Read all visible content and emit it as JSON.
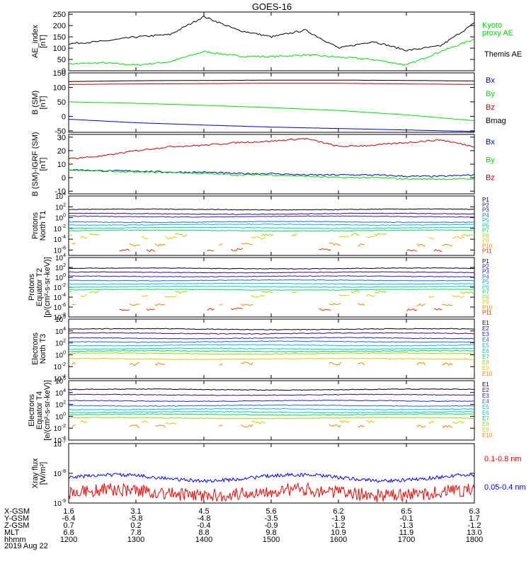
{
  "title": "GOES-16",
  "date_label": "2019 Aug 22",
  "colors": {
    "black": "#000000",
    "green": "#00e000",
    "blue": "#0000cc",
    "red": "#cc0000",
    "bright_red": "#ff0000",
    "bright_blue": "#0000ff",
    "channels": [
      "#000000",
      "#440088",
      "#2222cc",
      "#2266ff",
      "#00bbee",
      "#00ccbb",
      "#00dd55",
      "#99dd00",
      "#ddcc00",
      "#ee8800",
      "#dd3300",
      "#aa0000"
    ]
  },
  "orbit": {
    "rows": [
      {
        "label": "X-GSM",
        "values": [
          "1.6",
          "3.1",
          "4.5",
          "5.6",
          "6.2",
          "6.5",
          "6.3"
        ]
      },
      {
        "label": "Y-GSM",
        "values": [
          "-6.4",
          "-5.8",
          "-4.8",
          "-3.5",
          "-1.9",
          "-0.1",
          "1.7"
        ]
      },
      {
        "label": "Z-GSM",
        "values": [
          "0.7",
          "0.2",
          "-0.4",
          "-0.9",
          "-1.2",
          "-1.3",
          "-1.2"
        ]
      },
      {
        "label": "MLT",
        "values": [
          "6.8",
          "7.8",
          "8.8",
          "9.8",
          "10.9",
          "11.9",
          "13.0"
        ]
      },
      {
        "label": "hhmm",
        "values": [
          "1200",
          "1300",
          "1400",
          "1500",
          "1600",
          "1700",
          "1800"
        ]
      }
    ]
  },
  "chart_data": [
    {
      "type": "line",
      "ylabel": [
        "AE_index",
        "[nT]"
      ],
      "ylim": [
        0,
        260
      ],
      "yticks": [
        "0",
        "50",
        "100",
        "150",
        "200",
        "250"
      ],
      "x": [
        "1200",
        "1230",
        "1300",
        "1330",
        "1400",
        "1430",
        "1500",
        "1530",
        "1600",
        "1630",
        "1700",
        "1730",
        "1800"
      ],
      "series": [
        {
          "name": "Kyoto proxy AE",
          "color": "green",
          "values": [
            30,
            35,
            25,
            40,
            85,
            65,
            62,
            70,
            60,
            50,
            25,
            85,
            140
          ]
        },
        {
          "name": "Themis AE",
          "color": "black",
          "values": [
            120,
            130,
            150,
            160,
            240,
            180,
            150,
            180,
            100,
            130,
            90,
            110,
            210
          ]
        }
      ]
    },
    {
      "type": "line",
      "ylabel": [
        "B (SM)",
        "[nT]"
      ],
      "ylim": [
        -55,
        150
      ],
      "yticks": [
        "-50",
        "0",
        "50",
        "100",
        "150"
      ],
      "x": [
        "1200",
        "1300",
        "1400",
        "1500",
        "1600",
        "1700",
        "1800"
      ],
      "series": [
        {
          "name": "Bx",
          "color": "blue",
          "values": [
            -10,
            -22,
            -30,
            -37,
            -42,
            -47,
            -52
          ]
        },
        {
          "name": "By",
          "color": "green",
          "values": [
            50,
            45,
            38,
            30,
            20,
            5,
            -15
          ]
        },
        {
          "name": "Bz",
          "color": "red",
          "values": [
            110,
            112,
            113,
            114,
            114,
            112,
            110
          ]
        },
        {
          "name": "Bmag",
          "color": "black",
          "values": [
            120,
            123,
            124,
            125,
            125,
            124,
            122
          ]
        }
      ]
    },
    {
      "type": "line",
      "ylabel": [
        "B (SM)-IGRF (SM)",
        "[nT]"
      ],
      "ylim": [
        -12,
        32
      ],
      "yticks": [
        "-10",
        "0",
        "10",
        "20",
        "30"
      ],
      "x": [
        "1200",
        "1230",
        "1300",
        "1330",
        "1400",
        "1430",
        "1500",
        "1530",
        "1600",
        "1630",
        "1700",
        "1730",
        "1800"
      ],
      "series": [
        {
          "name": "Bx",
          "color": "blue",
          "values": [
            6,
            5,
            5,
            4,
            4,
            3,
            3,
            2,
            2,
            2,
            1,
            1,
            2
          ]
        },
        {
          "name": "By",
          "color": "green",
          "values": [
            6,
            5,
            4,
            4,
            3,
            2,
            2,
            1,
            0,
            0,
            -1,
            -1,
            -1
          ]
        },
        {
          "name": "Bz",
          "color": "red",
          "values": [
            14,
            16,
            20,
            23,
            24,
            26,
            27,
            29,
            23,
            24,
            26,
            28,
            23
          ]
        }
      ]
    },
    {
      "type": "line",
      "log": true,
      "ylabel": [
        "Protons",
        "North T1"
      ],
      "ylim_exp": [
        -7,
        4
      ],
      "ytick_exps": [
        4,
        2,
        0,
        -2,
        -4,
        -6
      ],
      "channels": [
        "P1",
        "P2",
        "P3",
        "P4",
        "P5",
        "P6",
        "P7",
        "P8",
        "P9",
        "P10",
        "P11"
      ],
      "levels_exp": [
        1.5,
        0.7,
        0.2,
        -0.8,
        -1.3,
        -1.9,
        -2.4,
        -3.2,
        -3.7,
        -5.0,
        -6.0
      ],
      "gappy_from": 7
    },
    {
      "type": "line",
      "log": true,
      "ylabel": [
        "Protons",
        "Equator T2",
        "[p/(cm²-s-sr-keV)]"
      ],
      "ylim_exp": [
        -8,
        4
      ],
      "ytick_exps": [
        4,
        2,
        0,
        -2,
        -4,
        -6,
        -8
      ],
      "channels": [
        "P1",
        "P2",
        "P3",
        "P4",
        "P5",
        "P6",
        "P7",
        "P8",
        "P9",
        "P10",
        "P11"
      ],
      "levels_exp": [
        1.8,
        1.0,
        0.2,
        -0.6,
        -1.3,
        -1.9,
        -2.5,
        -3.0,
        -3.8,
        -5.5,
        -6.5
      ],
      "gappy_from": 7
    },
    {
      "type": "line",
      "log": true,
      "ylabel": [
        "Electrons",
        "North T3"
      ],
      "ylim_exp": [
        -4,
        6
      ],
      "ytick_exps": [
        6,
        4,
        2,
        0,
        -2,
        -4
      ],
      "channels": [
        "E1",
        "E2",
        "E3",
        "E4",
        "E5",
        "E6",
        "E7",
        "E8",
        "E9",
        "E10"
      ],
      "levels_exp": [
        4.3,
        3.6,
        2.8,
        2.2,
        1.6,
        1.0,
        0.6,
        0.2,
        -0.7,
        -1.5
      ],
      "gappy_from": 9
    },
    {
      "type": "line",
      "log": true,
      "ylabel": [
        "Electrons",
        "Equator T4",
        "[e/(cm²-s-sr-keV)]"
      ],
      "ylim_exp": [
        -4,
        6
      ],
      "ytick_exps": [
        6,
        4,
        2,
        0,
        -2,
        -4
      ],
      "channels": [
        "E1",
        "E2",
        "E3",
        "E4",
        "E5",
        "E6",
        "E7",
        "E8",
        "E9",
        "E10"
      ],
      "levels_exp": [
        4.5,
        3.6,
        2.6,
        1.8,
        1.2,
        0.7,
        0.3,
        -0.3,
        -1.0,
        -1.6
      ],
      "gappy_from": 8
    },
    {
      "type": "line",
      "log": true,
      "ylabel": [
        "Xray flux",
        "[W/m²]"
      ],
      "ylim_exp": [
        -9,
        -7
      ],
      "ytick_exps": [
        -7,
        -8,
        -9
      ],
      "series": [
        {
          "name": "0.1-0.8 nm",
          "color": "bright_red",
          "level_exp": -8.65
        },
        {
          "name": "0.05-0.4 nm",
          "color": "bright_blue",
          "level_exp": -8.15
        }
      ]
    }
  ]
}
